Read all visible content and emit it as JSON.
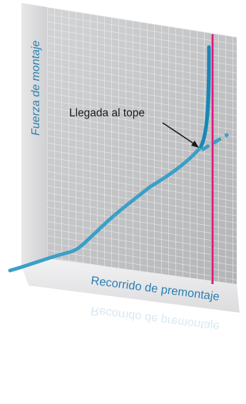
{
  "diagram": {
    "y_axis_label": "Fuerza de montaje",
    "x_axis_label": "Recorrido de premontaje",
    "annotation": "Llegada al tope"
  },
  "colors": {
    "curve": "#3aa0c8",
    "curve_dark": "#1a86b4",
    "stop_line": "#e0197d",
    "grid": "#ffffff",
    "panel": "#c7c8ca",
    "axis_text": "#2b7fb3"
  }
}
